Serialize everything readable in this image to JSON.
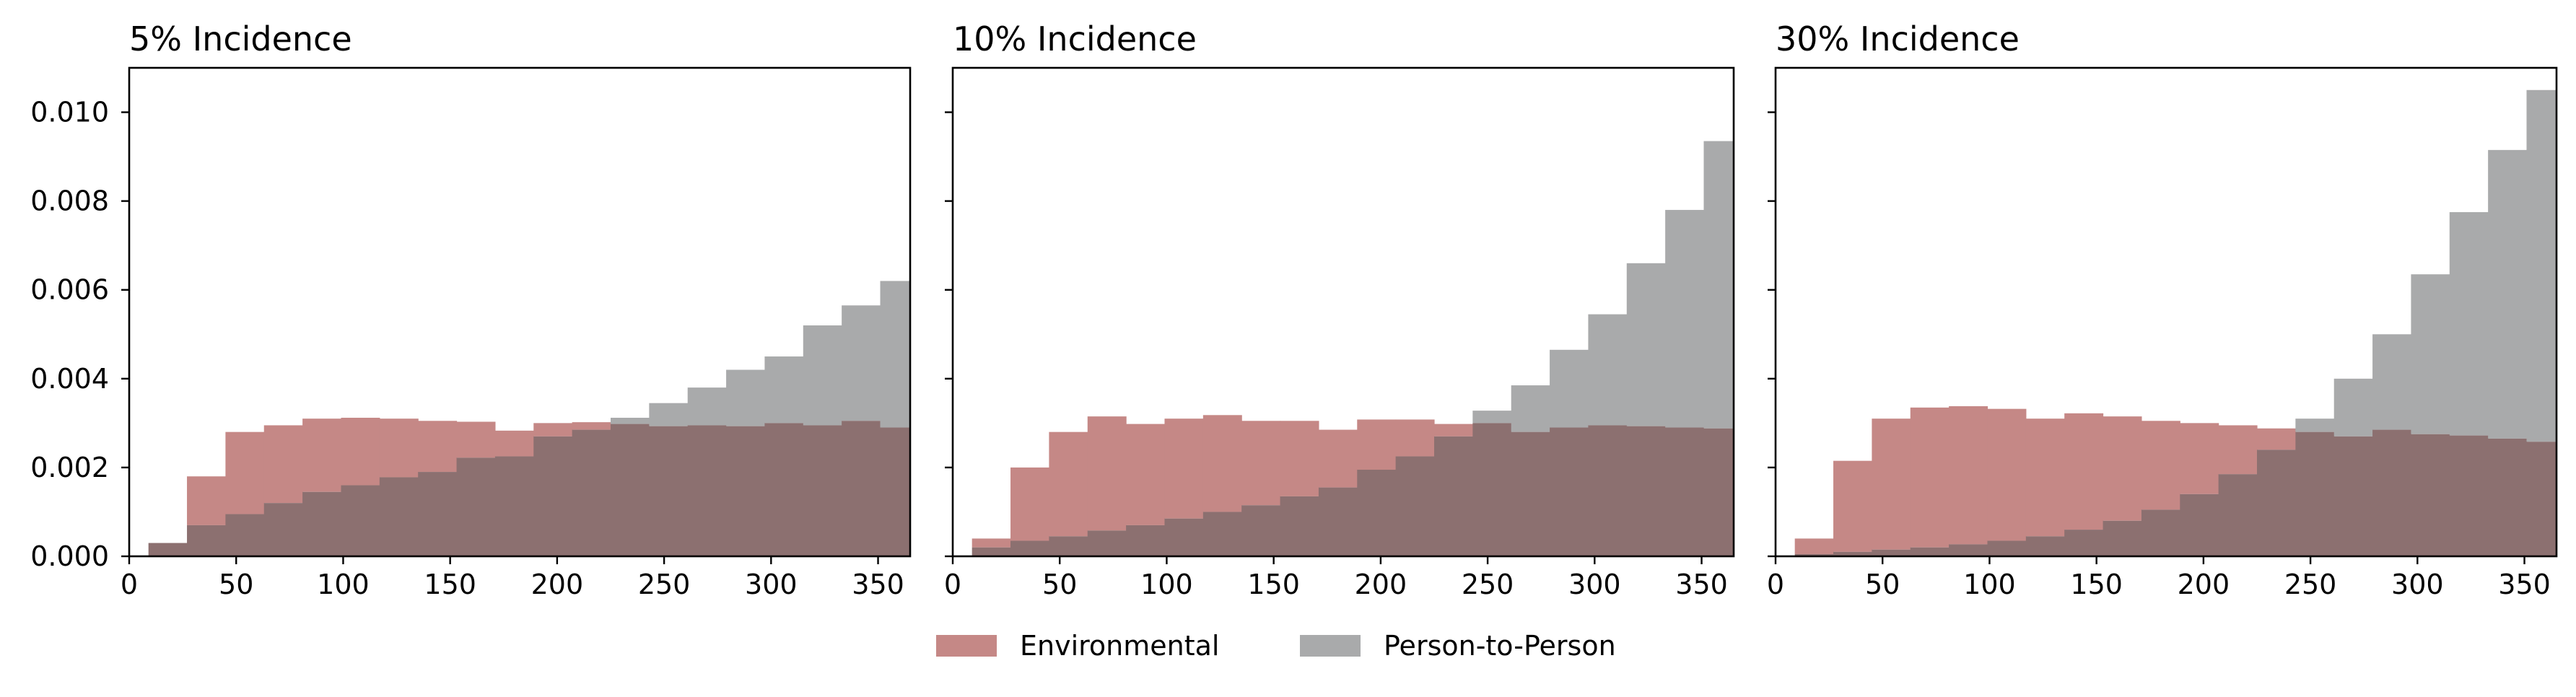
{
  "chart_data": {
    "type": "bar",
    "histogram_bin_edges": [
      9,
      27,
      45,
      63,
      81,
      99,
      117,
      135,
      153,
      171,
      189,
      207,
      225,
      243,
      261,
      279,
      297,
      315,
      333,
      351,
      369
    ],
    "xlim": [
      0,
      365
    ],
    "ylim": [
      0,
      0.011
    ],
    "x_ticks": [
      "0",
      "50",
      "100",
      "150",
      "200",
      "250",
      "300",
      "350"
    ],
    "x_tick_values": [
      0,
      50,
      100,
      150,
      200,
      250,
      300,
      350
    ],
    "y_ticks": [
      "0.000",
      "0.002",
      "0.004",
      "0.006",
      "0.008",
      "0.010"
    ],
    "y_tick_values": [
      0,
      0.002,
      0.004,
      0.006,
      0.008,
      0.01
    ],
    "legend": {
      "placement": "bottom-center",
      "entries": [
        {
          "label": "Environmental",
          "color": "#c58886"
        },
        {
          "label": "Person-to-Person",
          "color": "#a9aaab"
        }
      ]
    },
    "overlap_color": "#8c7070",
    "panels": [
      {
        "title": "5% Incidence",
        "series": [
          {
            "name": "Environmental",
            "values": [
              0.0003,
              0.0018,
              0.0028,
              0.00295,
              0.0031,
              0.00312,
              0.0031,
              0.00305,
              0.00303,
              0.00283,
              0.003,
              0.00302,
              0.00298,
              0.00293,
              0.00295,
              0.00293,
              0.003,
              0.00295,
              0.00305,
              0.0029
            ]
          },
          {
            "name": "Person-to-Person",
            "values": [
              0.0003,
              0.0007,
              0.00095,
              0.0012,
              0.00145,
              0.0016,
              0.00178,
              0.0019,
              0.00222,
              0.00225,
              0.0027,
              0.00285,
              0.00312,
              0.00345,
              0.0038,
              0.0042,
              0.0045,
              0.0052,
              0.00565,
              0.0062
            ]
          }
        ]
      },
      {
        "title": "10% Incidence",
        "series": [
          {
            "name": "Environmental",
            "values": [
              0.0004,
              0.002,
              0.0028,
              0.00315,
              0.00298,
              0.0031,
              0.00318,
              0.00305,
              0.00305,
              0.00285,
              0.00308,
              0.00308,
              0.00298,
              0.003,
              0.0028,
              0.0029,
              0.00295,
              0.00293,
              0.0029,
              0.00288
            ]
          },
          {
            "name": "Person-to-Person",
            "values": [
              0.0002,
              0.00035,
              0.00045,
              0.00058,
              0.0007,
              0.00085,
              0.001,
              0.00115,
              0.00135,
              0.00155,
              0.00195,
              0.00225,
              0.0027,
              0.00328,
              0.00385,
              0.00465,
              0.00545,
              0.0066,
              0.0078,
              0.00935
            ]
          }
        ]
      },
      {
        "title": "30% Incidence",
        "series": [
          {
            "name": "Environmental",
            "values": [
              0.0004,
              0.00215,
              0.0031,
              0.00335,
              0.00338,
              0.00332,
              0.0031,
              0.00322,
              0.00315,
              0.00305,
              0.003,
              0.00295,
              0.00288,
              0.0028,
              0.0027,
              0.00285,
              0.00275,
              0.00272,
              0.00265,
              0.00258
            ]
          },
          {
            "name": "Person-to-Person",
            "values": [
              5e-05,
              0.0001,
              0.00015,
              0.0002,
              0.00027,
              0.00035,
              0.00045,
              0.0006,
              0.0008,
              0.00105,
              0.0014,
              0.00185,
              0.0024,
              0.0031,
              0.004,
              0.005,
              0.00635,
              0.00775,
              0.00915,
              0.0105
            ]
          }
        ]
      }
    ]
  }
}
